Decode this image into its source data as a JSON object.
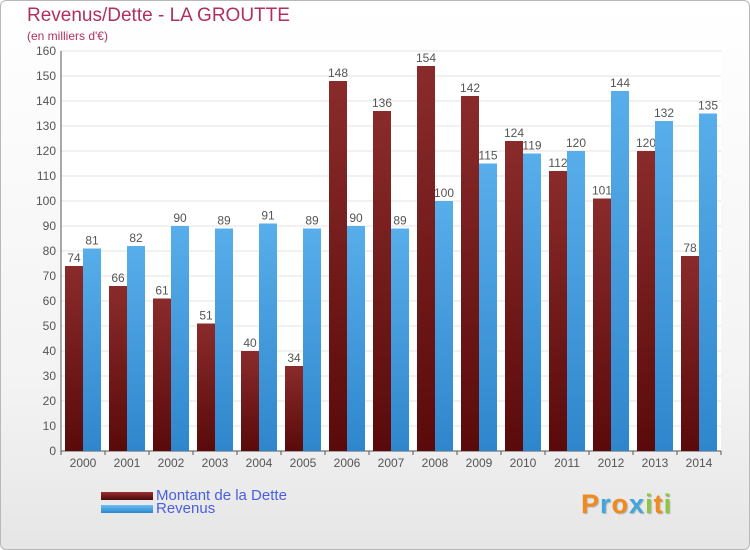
{
  "chart_data": {
    "type": "bar",
    "title": "Revenus/Dette - LA GROUTTE",
    "subtitle": "(en milliers d'€)",
    "categories": [
      "2000",
      "2001",
      "2002",
      "2003",
      "2004",
      "2005",
      "2006",
      "2007",
      "2008",
      "2009",
      "2010",
      "2011",
      "2012",
      "2013",
      "2014"
    ],
    "series": [
      {
        "name": "Montant de la Dette",
        "color": "#7a1a1a",
        "values": [
          74,
          66,
          61,
          51,
          40,
          34,
          148,
          136,
          154,
          142,
          124,
          112,
          101,
          120,
          78
        ]
      },
      {
        "name": "Revenus",
        "color": "#4aa3e6",
        "values": [
          81,
          82,
          90,
          89,
          91,
          89,
          90,
          89,
          100,
          115,
          119,
          120,
          144,
          132,
          135
        ]
      }
    ],
    "ylim": [
      0,
      160
    ],
    "yticks": [
      0,
      10,
      20,
      30,
      40,
      50,
      60,
      70,
      80,
      90,
      100,
      110,
      120,
      130,
      140,
      150,
      160
    ],
    "grid": true,
    "legend_position": "bottom-left"
  },
  "logo": {
    "letters": [
      {
        "ch": "P",
        "color": "#f08a1c"
      },
      {
        "ch": "r",
        "color": "#3fa7dc"
      },
      {
        "ch": "o",
        "color": "#f08a1c"
      },
      {
        "ch": "x",
        "color": "#3fa7dc"
      },
      {
        "ch": "i",
        "color": "#8cc63f"
      },
      {
        "ch": "t",
        "color": "#f08a1c"
      },
      {
        "ch": "i",
        "color": "#8cc63f"
      }
    ]
  }
}
